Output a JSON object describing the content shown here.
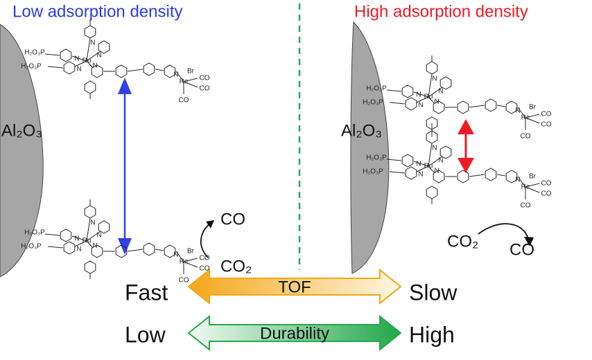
{
  "titles": {
    "low": "Low adsorption density",
    "high": "High adsorption density"
  },
  "surface_label": "Al₂O₃",
  "molecule": {
    "ru": "Ru",
    "re": "Re",
    "br": "Br",
    "n": "N",
    "phosphonate": "H₂O₃P",
    "carbonyl": "CO"
  },
  "reaction": {
    "product": "CO",
    "reactant": "CO₂"
  },
  "tof": {
    "left": "Fast",
    "label": "TOF",
    "right": "Slow"
  },
  "durability": {
    "left": "Low",
    "label": "Durability",
    "right": "High"
  }
}
